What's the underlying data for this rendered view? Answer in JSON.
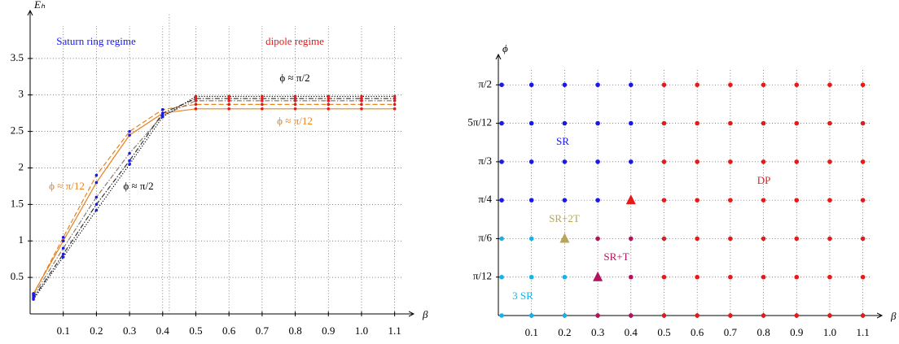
{
  "chart_data": [
    {
      "type": "line",
      "title": "Saturn ring regime",
      "subtitle": "dipole regime",
      "title_color": "#1a1ae6",
      "subtitle_color": "#e61a1a",
      "x_label": "β",
      "y_label": "Eₕ",
      "x": [
        0.01,
        0.1,
        0.2,
        0.3,
        0.4,
        0.5,
        0.6,
        0.7,
        0.8,
        0.9,
        1.0,
        1.1
      ],
      "xlim": [
        0,
        1.15
      ],
      "ylim": [
        0,
        4
      ],
      "xticks": [
        0.1,
        0.2,
        0.3,
        0.4,
        0.5,
        0.6,
        0.7,
        0.8,
        0.9,
        {
          "value": 1.0,
          "label": "1.0"
        },
        1.1
      ],
      "yticks": [
        0.5,
        1,
        1.5,
        2,
        2.5,
        3,
        3.5
      ],
      "grid": true,
      "regime_boundary": 0.42,
      "marker_colors": [
        "#1a1ae6",
        "#1a1ae6",
        "#1a1ae6",
        "#1a1ae6",
        "#1a1ae6",
        "#e61a1a",
        "#e61a1a",
        "#e61a1a",
        "#e61a1a",
        "#e61a1a",
        "#e61a1a",
        "#e61a1a"
      ],
      "series": [
        {
          "color": "#e8821e",
          "dash": "solid",
          "values": [
            0.28,
            1.0,
            1.8,
            2.45,
            2.75,
            2.81,
            2.81,
            2.81,
            2.81,
            2.81,
            2.81,
            2.81
          ]
        },
        {
          "color": "#e8821e",
          "dash": "dashed",
          "values": [
            0.27,
            1.05,
            1.9,
            2.5,
            2.8,
            2.87,
            2.87,
            2.87,
            2.87,
            2.87,
            2.87,
            2.87
          ]
        },
        {
          "color": "#8a7a6a",
          "dash": "dashdot",
          "values": [
            0.25,
            0.9,
            1.6,
            2.2,
            2.72,
            2.92,
            2.92,
            2.92,
            2.92,
            2.92,
            2.92,
            2.92
          ]
        },
        {
          "color": "#333333",
          "dash": "dashdot",
          "values": [
            0.22,
            0.82,
            1.5,
            2.1,
            2.75,
            2.95,
            2.95,
            2.95,
            2.95,
            2.95,
            2.95,
            2.95
          ]
        },
        {
          "color": "#000000",
          "dash": "dotted",
          "values": [
            0.2,
            0.78,
            1.42,
            2.05,
            2.7,
            2.98,
            2.98,
            2.98,
            2.98,
            2.98,
            2.98,
            2.98
          ]
        }
      ],
      "annotations": [
        {
          "text": "ϕ ≈ π/2",
          "color": "#000000"
        },
        {
          "text": "ϕ ≈ π/12",
          "color": "#e8821e"
        },
        {
          "text": "ϕ ≈ π/12",
          "color": "#e8821e"
        },
        {
          "text": "ϕ ≈ π/2",
          "color": "#000000"
        }
      ]
    },
    {
      "type": "scatter",
      "x_label": "β",
      "y_label": "ϕ",
      "xlim": [
        0,
        1.15
      ],
      "ylim": [
        0,
        1.7
      ],
      "xticks": [
        0.1,
        0.2,
        0.3,
        0.4,
        0.5,
        0.6,
        0.7,
        0.8,
        0.9,
        {
          "value": 1.0,
          "label": "1.0"
        },
        1.1
      ],
      "yticks": [
        {
          "value": 0.2618,
          "label": "π/12"
        },
        {
          "value": 0.5236,
          "label": "π/6"
        },
        {
          "value": 0.7854,
          "label": "π/4"
        },
        {
          "value": 1.0472,
          "label": "π/3"
        },
        {
          "value": 1.309,
          "label": "5π/12"
        },
        {
          "value": 1.5708,
          "label": "π/2"
        }
      ],
      "grid": true,
      "series": [
        {
          "name": "SR",
          "color": "#1a1ae6",
          "marker": "circle",
          "x": [
            0.01,
            0.1,
            0.2,
            0.3,
            0.4,
            0.01,
            0.1,
            0.2,
            0.3,
            0.4,
            0.01,
            0.1,
            0.2,
            0.3,
            0.4,
            0.01,
            0.1,
            0.2,
            0.3
          ],
          "y": [
            1.5708,
            1.5708,
            1.5708,
            1.5708,
            1.5708,
            1.309,
            1.309,
            1.309,
            1.309,
            1.309,
            1.0472,
            1.0472,
            1.0472,
            1.0472,
            1.0472,
            0.7854,
            0.7854,
            0.7854,
            0.7854
          ]
        },
        {
          "name": "3 SR",
          "color": "#1ab2e6",
          "marker": "circle",
          "x": [
            0.01,
            0.1,
            0.01,
            0.1,
            0.2,
            0.01,
            0.1,
            0.2
          ],
          "y": [
            0.5236,
            0.5236,
            0.2618,
            0.2618,
            0.2618,
            0,
            0,
            0
          ]
        },
        {
          "name": "SR+T",
          "color": "#b3135a",
          "marker": "circle",
          "x": [
            0.3,
            0.4,
            0.4,
            0.3,
            0.4
          ],
          "y": [
            0.5236,
            0.5236,
            0.2618,
            0,
            0
          ]
        },
        {
          "name": "DP",
          "color": "#e61a1a",
          "marker": "circle",
          "x": [
            0.5,
            0.6,
            0.7,
            0.8,
            0.9,
            1.0,
            1.1,
            0.5,
            0.6,
            0.7,
            0.8,
            0.9,
            1.0,
            1.1,
            0.5,
            0.6,
            0.7,
            0.8,
            0.9,
            1.0,
            1.1,
            0.5,
            0.6,
            0.7,
            0.8,
            0.9,
            1.0,
            1.1,
            0.5,
            0.6,
            0.7,
            0.8,
            0.9,
            1.0,
            1.1,
            0.5,
            0.6,
            0.7,
            0.8,
            0.9,
            1.0,
            1.1,
            0.5,
            0.6,
            0.7,
            0.8,
            0.9,
            1.0,
            1.1
          ],
          "y": [
            1.5708,
            1.5708,
            1.5708,
            1.5708,
            1.5708,
            1.5708,
            1.5708,
            1.309,
            1.309,
            1.309,
            1.309,
            1.309,
            1.309,
            1.309,
            1.0472,
            1.0472,
            1.0472,
            1.0472,
            1.0472,
            1.0472,
            1.0472,
            0.7854,
            0.7854,
            0.7854,
            0.7854,
            0.7854,
            0.7854,
            0.7854,
            0.5236,
            0.5236,
            0.5236,
            0.5236,
            0.5236,
            0.5236,
            0.5236,
            0.2618,
            0.2618,
            0.2618,
            0.2618,
            0.2618,
            0.2618,
            0.2618,
            0,
            0,
            0,
            0,
            0,
            0,
            0
          ]
        },
        {
          "color": "#e61a1a",
          "marker": "triangle",
          "x": [
            0.4
          ],
          "y": [
            0.7854
          ]
        },
        {
          "name": "SR+2T",
          "color": "#b5a65a",
          "marker": "triangle",
          "x": [
            0.2
          ],
          "y": [
            0.5236
          ]
        },
        {
          "color": "#b3135a",
          "marker": "triangle",
          "x": [
            0.3
          ],
          "y": [
            0.2618
          ]
        }
      ]
    }
  ]
}
